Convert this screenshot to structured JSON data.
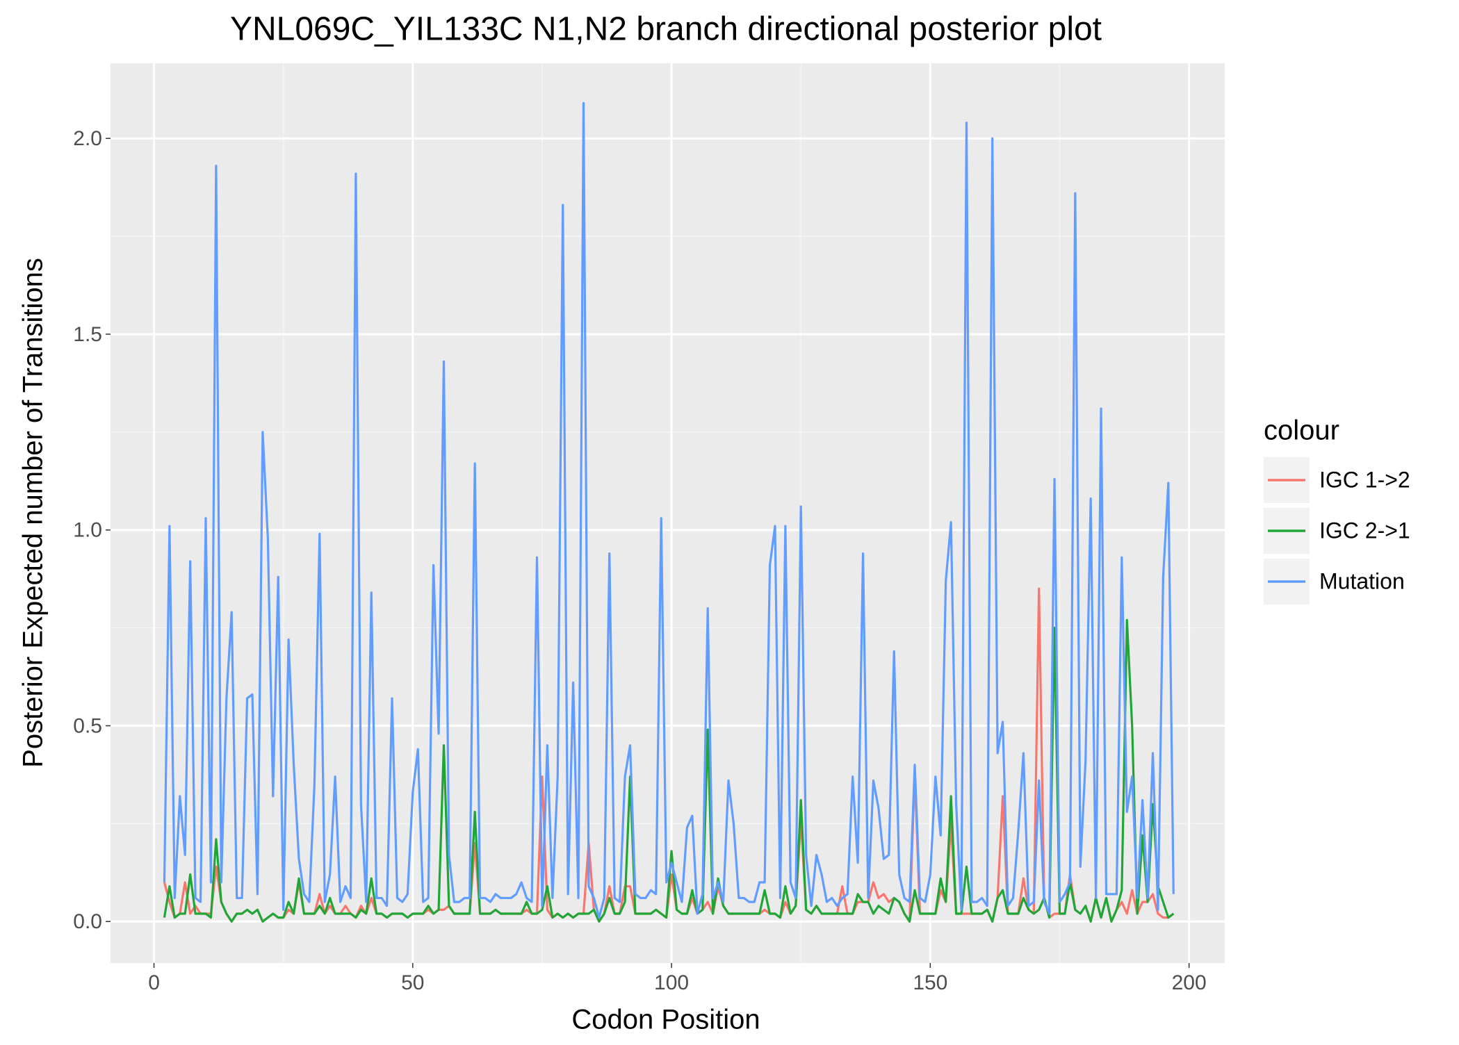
{
  "chart_data": {
    "type": "line",
    "title": "YNL069C_YIL133C N1,N2 branch directional posterior plot",
    "x_label": "Codon Position",
    "y_label": "Posterior Expected number of Transitions",
    "legend_title": "colour",
    "legend_position": "right",
    "grid": true,
    "xlim": [
      -8.4,
      206.9
    ],
    "ylim": [
      -0.106,
      2.192
    ],
    "xticks": [
      0,
      50,
      100,
      150,
      200
    ],
    "yticks": [
      {
        "value": 0,
        "label": "0.0"
      },
      {
        "value": 0.5,
        "label": "0.5"
      },
      {
        "value": 1,
        "label": "1.0"
      },
      {
        "value": 1.5,
        "label": "1.5"
      },
      {
        "value": 2,
        "label": "2.0"
      }
    ],
    "x": [
      2,
      3,
      4,
      5,
      6,
      7,
      8,
      9,
      10,
      11,
      12,
      13,
      14,
      15,
      16,
      17,
      18,
      19,
      20,
      21,
      22,
      23,
      24,
      25,
      26,
      27,
      28,
      29,
      30,
      31,
      32,
      33,
      34,
      35,
      36,
      37,
      38,
      39,
      40,
      41,
      42,
      43,
      44,
      45,
      46,
      47,
      48,
      49,
      50,
      51,
      52,
      53,
      54,
      55,
      56,
      57,
      58,
      59,
      60,
      61,
      62,
      63,
      64,
      65,
      66,
      67,
      68,
      69,
      70,
      71,
      72,
      73,
      74,
      75,
      76,
      77,
      78,
      79,
      80,
      81,
      82,
      83,
      84,
      85,
      86,
      87,
      88,
      89,
      90,
      91,
      92,
      93,
      94,
      95,
      96,
      97,
      98,
      99,
      100,
      101,
      102,
      103,
      104,
      105,
      106,
      107,
      108,
      109,
      110,
      111,
      112,
      113,
      114,
      115,
      116,
      117,
      118,
      119,
      120,
      121,
      122,
      123,
      124,
      125,
      126,
      127,
      128,
      129,
      130,
      131,
      132,
      133,
      134,
      135,
      136,
      137,
      138,
      139,
      140,
      141,
      142,
      143,
      144,
      145,
      146,
      147,
      148,
      149,
      150,
      151,
      152,
      153,
      154,
      155,
      156,
      157,
      158,
      159,
      160,
      161,
      162,
      163,
      164,
      165,
      166,
      167,
      168,
      169,
      170,
      171,
      172,
      173,
      174,
      175,
      176,
      177,
      178,
      179,
      180,
      181,
      182,
      183,
      184,
      185,
      186,
      187,
      188,
      189,
      190,
      191,
      192,
      193,
      194,
      195,
      196,
      197
    ],
    "series": [
      {
        "name": "IGC 1->2",
        "color": "#F8766D",
        "values": [
          0.1,
          0.05,
          0.01,
          0.02,
          0.1,
          0.02,
          0.04,
          0.02,
          0.02,
          0.02,
          0.14,
          0.05,
          0.02,
          0.0,
          0.02,
          0.02,
          0.03,
          0.02,
          0.03,
          0.0,
          0.01,
          0.02,
          0.01,
          0.01,
          0.03,
          0.02,
          0.1,
          0.02,
          0.02,
          0.02,
          0.07,
          0.02,
          0.04,
          0.02,
          0.02,
          0.04,
          0.02,
          0.01,
          0.04,
          0.02,
          0.06,
          0.02,
          0.02,
          0.01,
          0.02,
          0.02,
          0.02,
          0.01,
          0.02,
          0.02,
          0.02,
          0.03,
          0.02,
          0.03,
          0.03,
          0.04,
          0.02,
          0.02,
          0.02,
          0.02,
          0.2,
          0.02,
          0.02,
          0.02,
          0.03,
          0.02,
          0.02,
          0.02,
          0.02,
          0.02,
          0.03,
          0.02,
          0.02,
          0.37,
          0.03,
          0.01,
          0.02,
          0.01,
          0.02,
          0.01,
          0.02,
          0.02,
          0.2,
          0.03,
          0.0,
          0.02,
          0.09,
          0.02,
          0.02,
          0.09,
          0.09,
          0.02,
          0.02,
          0.02,
          0.02,
          0.03,
          0.02,
          0.01,
          0.12,
          0.03,
          0.02,
          0.02,
          0.06,
          0.02,
          0.03,
          0.05,
          0.02,
          0.09,
          0.04,
          0.02,
          0.02,
          0.02,
          0.02,
          0.02,
          0.02,
          0.02,
          0.03,
          0.02,
          0.02,
          0.01,
          0.05,
          0.02,
          0.04,
          0.26,
          0.03,
          0.02,
          0.04,
          0.02,
          0.02,
          0.02,
          0.02,
          0.09,
          0.02,
          0.02,
          0.05,
          0.05,
          0.05,
          0.1,
          0.06,
          0.07,
          0.05,
          0.06,
          0.05,
          0.02,
          0.0,
          0.38,
          0.02,
          0.02,
          0.02,
          0.02,
          0.08,
          0.05,
          0.25,
          0.02,
          0.02,
          0.02,
          0.02,
          0.02,
          0.02,
          0.03,
          0.0,
          0.06,
          0.32,
          0.02,
          0.02,
          0.02,
          0.11,
          0.03,
          0.02,
          0.85,
          0.06,
          0.01,
          0.02,
          0.02,
          0.02,
          0.12,
          0.03,
          0.02,
          0.04,
          0.0,
          0.06,
          0.01,
          0.06,
          0.0,
          0.03,
          0.05,
          0.02,
          0.08,
          0.02,
          0.05,
          0.05,
          0.07,
          0.02,
          0.01,
          0.01,
          0.02
        ]
      },
      {
        "name": "IGC 2->1",
        "color": "#1FA637",
        "values": [
          0.01,
          0.09,
          0.01,
          0.02,
          0.02,
          0.12,
          0.02,
          0.02,
          0.02,
          0.01,
          0.21,
          0.05,
          0.02,
          0.0,
          0.02,
          0.02,
          0.03,
          0.02,
          0.03,
          0.0,
          0.01,
          0.02,
          0.01,
          0.01,
          0.05,
          0.02,
          0.11,
          0.02,
          0.02,
          0.02,
          0.04,
          0.02,
          0.06,
          0.02,
          0.02,
          0.02,
          0.02,
          0.01,
          0.03,
          0.02,
          0.11,
          0.02,
          0.02,
          0.01,
          0.02,
          0.02,
          0.02,
          0.01,
          0.02,
          0.02,
          0.02,
          0.04,
          0.02,
          0.03,
          0.45,
          0.04,
          0.02,
          0.02,
          0.02,
          0.02,
          0.28,
          0.02,
          0.02,
          0.02,
          0.03,
          0.02,
          0.02,
          0.02,
          0.02,
          0.02,
          0.05,
          0.02,
          0.02,
          0.03,
          0.09,
          0.01,
          0.02,
          0.01,
          0.02,
          0.01,
          0.02,
          0.02,
          0.02,
          0.03,
          0.0,
          0.02,
          0.06,
          0.02,
          0.02,
          0.05,
          0.37,
          0.02,
          0.02,
          0.02,
          0.02,
          0.03,
          0.02,
          0.01,
          0.18,
          0.03,
          0.02,
          0.02,
          0.08,
          0.02,
          0.03,
          0.49,
          0.02,
          0.11,
          0.04,
          0.02,
          0.02,
          0.02,
          0.02,
          0.02,
          0.02,
          0.02,
          0.08,
          0.02,
          0.02,
          0.01,
          0.09,
          0.02,
          0.04,
          0.31,
          0.03,
          0.02,
          0.04,
          0.02,
          0.02,
          0.02,
          0.02,
          0.02,
          0.02,
          0.02,
          0.07,
          0.05,
          0.05,
          0.02,
          0.04,
          0.03,
          0.02,
          0.06,
          0.05,
          0.02,
          0.0,
          0.08,
          0.02,
          0.02,
          0.02,
          0.02,
          0.11,
          0.05,
          0.32,
          0.02,
          0.02,
          0.14,
          0.02,
          0.02,
          0.02,
          0.03,
          0.0,
          0.06,
          0.08,
          0.02,
          0.02,
          0.02,
          0.06,
          0.03,
          0.02,
          0.03,
          0.06,
          0.01,
          0.75,
          0.02,
          0.02,
          0.1,
          0.03,
          0.02,
          0.04,
          0.0,
          0.06,
          0.01,
          0.06,
          0.0,
          0.03,
          0.08,
          0.77,
          0.5,
          0.02,
          0.22,
          0.05,
          0.3,
          0.09,
          0.05,
          0.01,
          0.02
        ]
      },
      {
        "name": "Mutation",
        "color": "#619CFF",
        "values": [
          0.1,
          1.01,
          0.06,
          0.32,
          0.17,
          0.92,
          0.06,
          0.05,
          1.03,
          0.1,
          1.93,
          0.1,
          0.57,
          0.79,
          0.06,
          0.06,
          0.57,
          0.58,
          0.07,
          1.25,
          0.98,
          0.32,
          0.88,
          0.03,
          0.72,
          0.4,
          0.16,
          0.07,
          0.05,
          0.35,
          0.99,
          0.05,
          0.12,
          0.37,
          0.05,
          0.09,
          0.06,
          1.91,
          0.3,
          0.05,
          0.84,
          0.06,
          0.06,
          0.04,
          0.57,
          0.06,
          0.05,
          0.07,
          0.33,
          0.44,
          0.05,
          0.06,
          0.91,
          0.48,
          1.43,
          0.17,
          0.05,
          0.05,
          0.06,
          0.06,
          1.17,
          0.06,
          0.06,
          0.05,
          0.07,
          0.06,
          0.06,
          0.06,
          0.07,
          0.1,
          0.06,
          0.05,
          0.93,
          0.04,
          0.45,
          0.06,
          0.37,
          1.83,
          0.07,
          0.61,
          0.06,
          2.09,
          0.09,
          0.06,
          0.01,
          0.06,
          0.94,
          0.06,
          0.05,
          0.37,
          0.45,
          0.07,
          0.06,
          0.06,
          0.08,
          0.07,
          1.03,
          0.1,
          0.15,
          0.1,
          0.05,
          0.24,
          0.27,
          0.02,
          0.07,
          0.8,
          0.06,
          0.1,
          0.05,
          0.36,
          0.25,
          0.06,
          0.06,
          0.05,
          0.05,
          0.1,
          0.1,
          0.91,
          1.01,
          0.06,
          1.01,
          0.1,
          0.06,
          1.06,
          0.17,
          0.04,
          0.17,
          0.12,
          0.05,
          0.06,
          0.04,
          0.06,
          0.07,
          0.37,
          0.15,
          0.94,
          0.06,
          0.36,
          0.29,
          0.16,
          0.17,
          0.69,
          0.12,
          0.06,
          0.05,
          0.4,
          0.06,
          0.05,
          0.12,
          0.37,
          0.22,
          0.87,
          1.02,
          0.3,
          0.03,
          2.04,
          0.05,
          0.05,
          0.06,
          0.04,
          2.0,
          0.43,
          0.51,
          0.04,
          0.06,
          0.23,
          0.43,
          0.04,
          0.05,
          0.36,
          0.05,
          0.02,
          1.13,
          0.05,
          0.07,
          0.1,
          1.86,
          0.14,
          0.41,
          1.08,
          0.06,
          1.31,
          0.07,
          0.07,
          0.07,
          0.93,
          0.28,
          0.37,
          0.06,
          0.31,
          0.06,
          0.43,
          0.03,
          0.88,
          1.12,
          0.07
        ]
      }
    ]
  }
}
